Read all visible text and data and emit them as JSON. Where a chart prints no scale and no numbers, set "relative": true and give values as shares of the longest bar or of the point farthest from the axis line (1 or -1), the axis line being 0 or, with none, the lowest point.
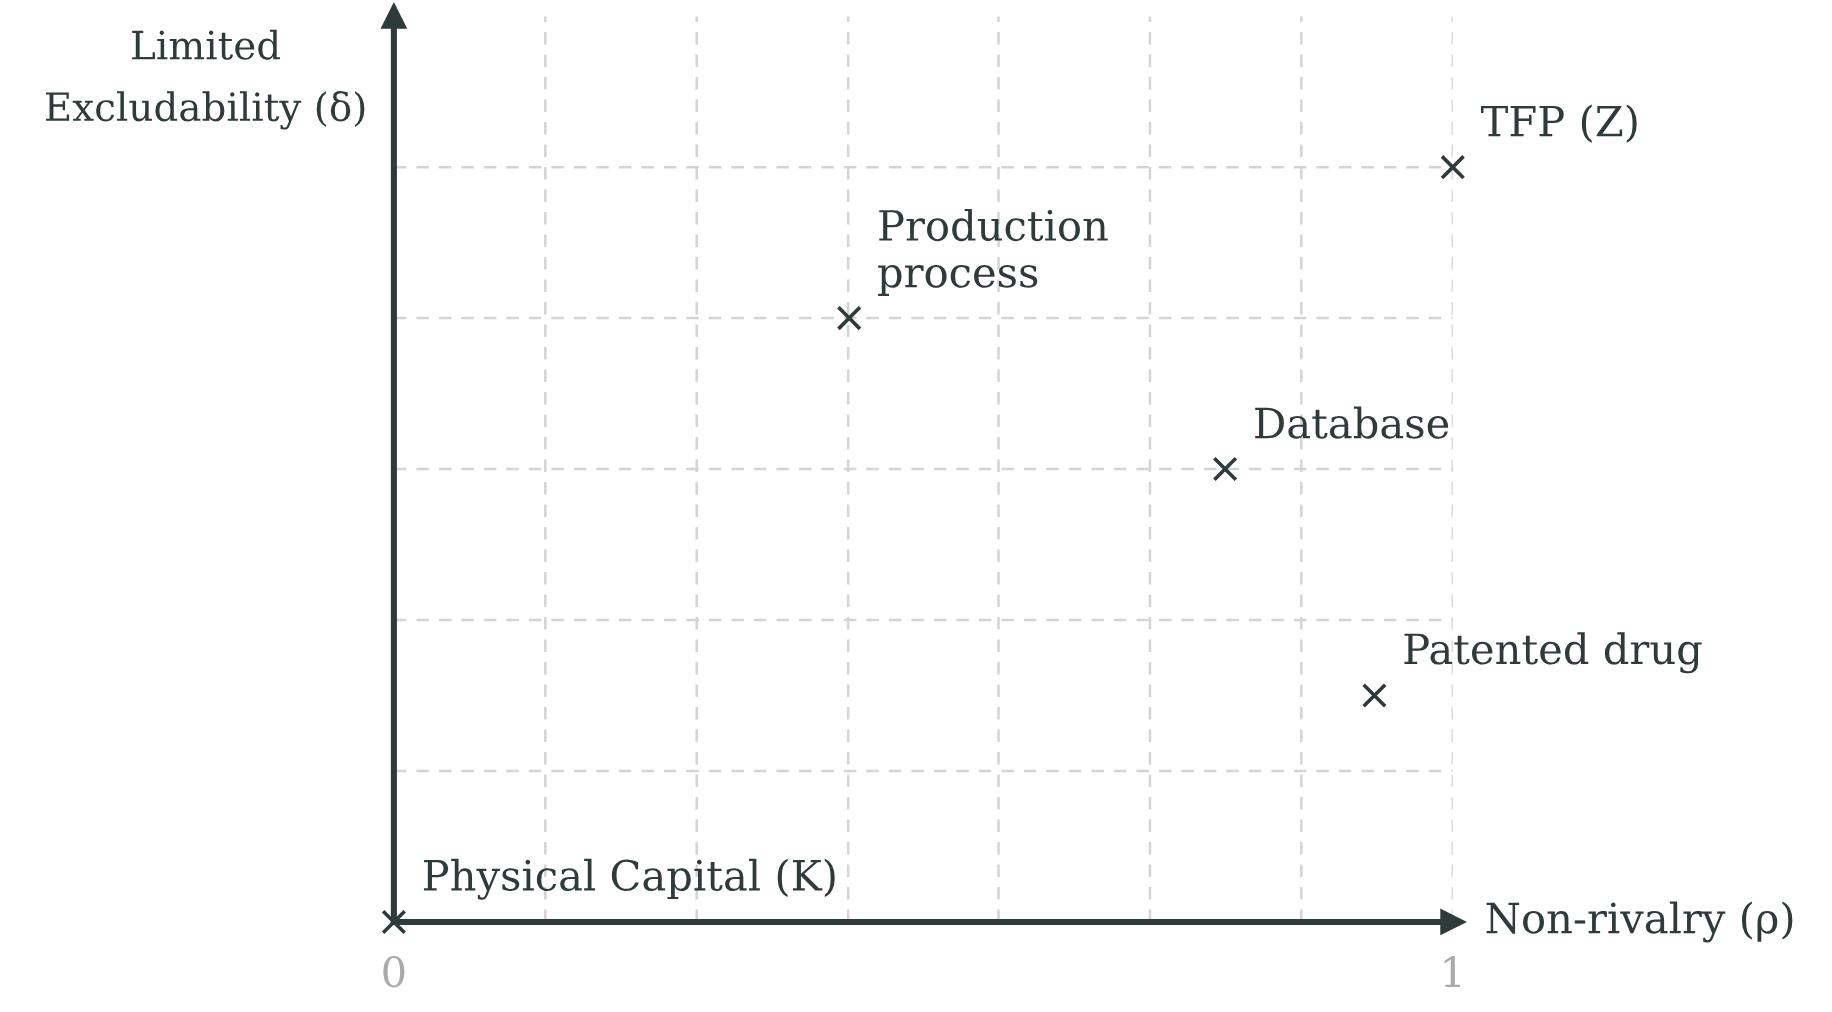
{
  "chart_data": {
    "type": "scatter",
    "relative": true,
    "xlabel": "Non-rivalry (ρ)",
    "ylabel": "Limited\nExcludability (δ)",
    "x": [
      0,
      0.43,
      0.785,
      0.926,
      1.0
    ],
    "values": [
      0,
      0.8,
      0.6,
      0.3,
      1.0
    ],
    "color": "#2f3b3b",
    "marker": "cross",
    "grid": true,
    "xlim": [
      0,
      1
    ],
    "xticks": [
      0,
      {
        "value": 0.143,
        "label": null
      },
      {
        "value": 0.286,
        "label": null
      },
      {
        "value": 0.429,
        "label": null
      },
      {
        "value": 0.571,
        "label": null
      },
      {
        "value": 0.714,
        "label": null
      },
      {
        "value": 0.857,
        "label": null
      },
      1
    ],
    "annotations": [
      {
        "text": "Physical Capital (K)",
        "x": 0,
        "y": 0
      },
      {
        "text": "Production\nprocess",
        "x": 0.43,
        "y": 0.8
      },
      {
        "text": "Database",
        "x": 0.785,
        "y": 0.6
      },
      {
        "text": "Patented drug",
        "x": 0.926,
        "y": 0.3
      },
      {
        "text": "TFP (Z)",
        "x": 1.0,
        "y": 1.0
      }
    ]
  }
}
